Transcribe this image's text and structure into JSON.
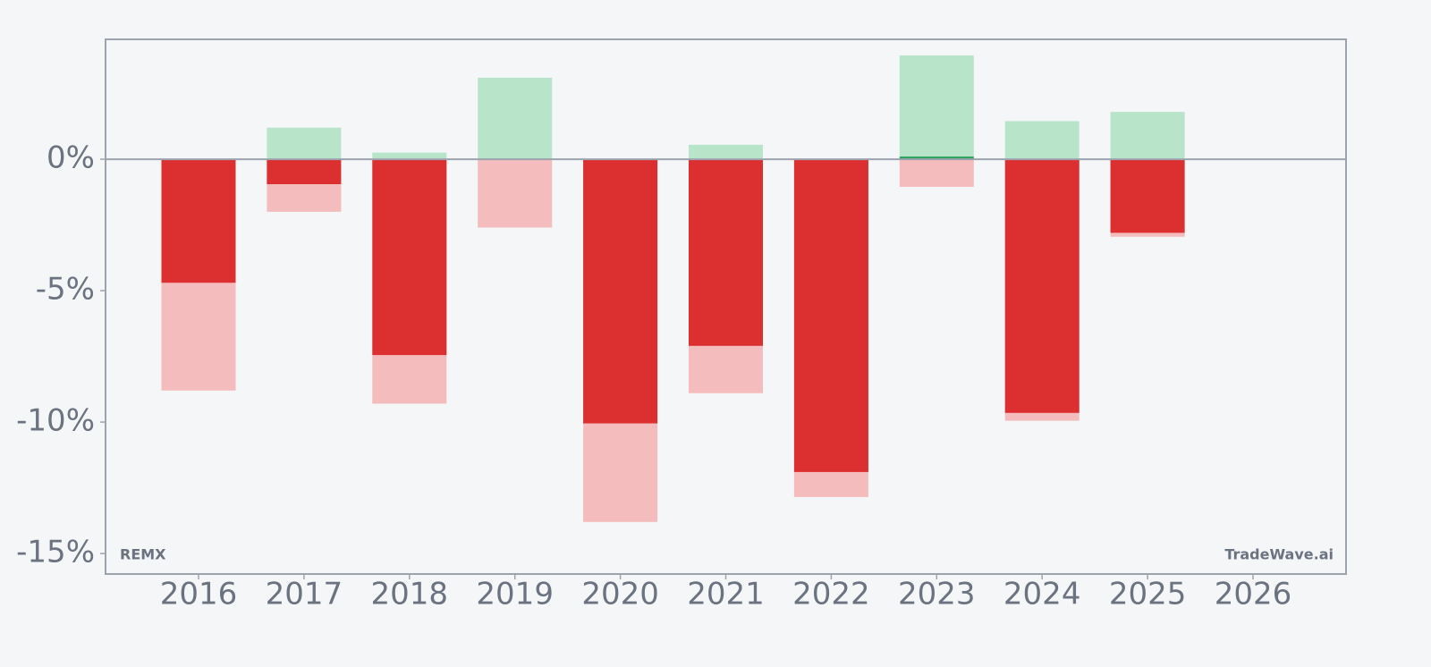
{
  "chart_data": {
    "type": "bar",
    "categories": [
      "2016",
      "2017",
      "2018",
      "2019",
      "2020",
      "2021",
      "2022",
      "2023",
      "2024",
      "2025",
      "2026"
    ],
    "series": [
      {
        "role": "gain",
        "color": "#b8e4c9",
        "values": [
          0,
          1.2,
          0.25,
          3.1,
          0,
          0.55,
          0,
          3.95,
          1.45,
          1.8,
          null
        ]
      },
      {
        "role": "drawdown",
        "color": "#f4bcbc",
        "values": [
          -8.8,
          -2.0,
          -9.3,
          -2.6,
          -13.8,
          -8.9,
          -12.85,
          -1.05,
          -9.95,
          -2.95,
          null
        ]
      },
      {
        "role": "return",
        "color": "#2e9e5b",
        "negative_color": "#dc3030",
        "values": [
          -4.7,
          -0.95,
          -7.45,
          0,
          -10.05,
          -7.1,
          -11.9,
          0.1,
          -9.65,
          -2.8,
          null
        ]
      }
    ],
    "ylim": [
      -15.78,
      4.56
    ],
    "yticks": [
      {
        "value": 0,
        "label": "0%"
      },
      {
        "value": -5,
        "label": "-5%"
      },
      {
        "value": -10,
        "label": "-10%"
      },
      {
        "value": -15,
        "label": "-15%"
      }
    ],
    "annotations": [
      "REMX",
      "TradeWave.ai"
    ]
  }
}
